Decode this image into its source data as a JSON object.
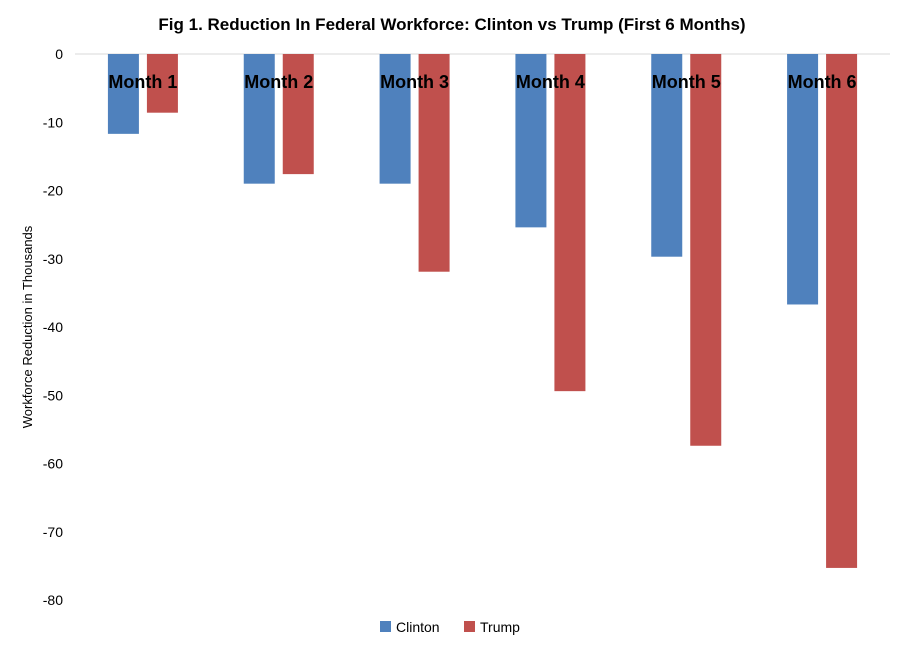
{
  "chart_data": {
    "type": "bar",
    "title": "Fig 1. Reduction In Federal Workforce: Clinton vs Trump (First 6 Months)",
    "xlabel": "",
    "ylabel": "Workforce Reduction in Thousands",
    "categories": [
      "Month 1",
      "Month 2",
      "Month 3",
      "Month 4",
      "Month 5",
      "Month 6"
    ],
    "series": [
      {
        "name": "Clinton",
        "color": "#4f81bd",
        "values": [
          -11.7,
          -19.0,
          -19.0,
          -25.4,
          -29.7,
          -36.7
        ]
      },
      {
        "name": "Trump",
        "color": "#c0504d",
        "values": [
          -8.6,
          -17.6,
          -31.9,
          -49.4,
          -57.4,
          -75.3
        ]
      }
    ],
    "ylim": [
      -80,
      0
    ],
    "yticks": [
      0,
      -10,
      -20,
      -30,
      -40,
      -50,
      -60,
      -70,
      -80
    ],
    "grid": false,
    "legend_position": "bottom"
  }
}
